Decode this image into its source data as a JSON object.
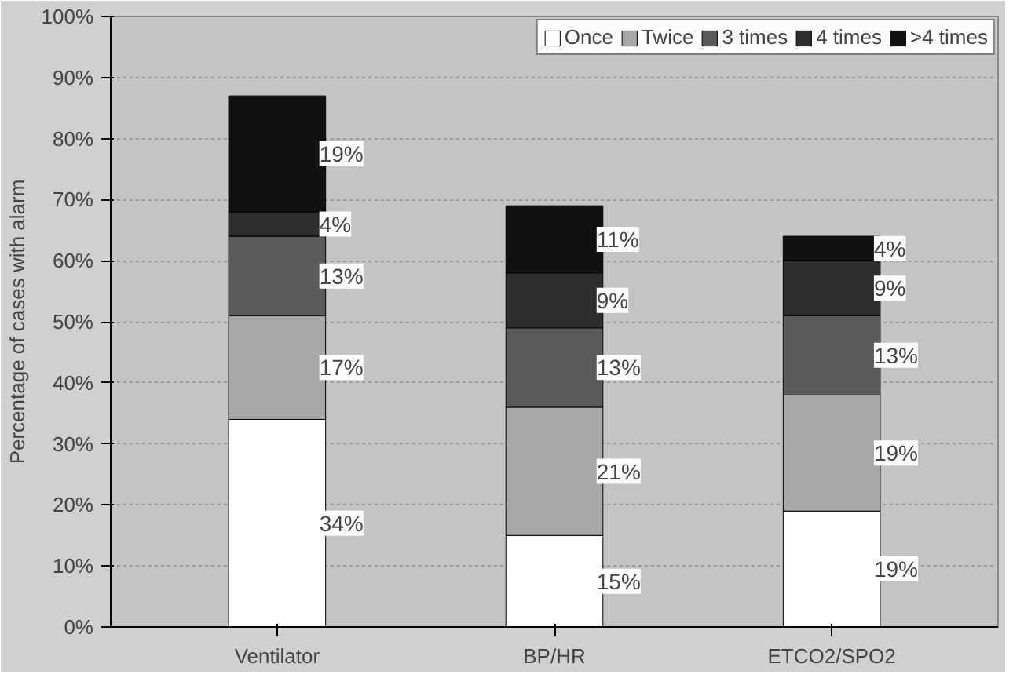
{
  "chart_data": {
    "type": "bar",
    "stacked": true,
    "ylabel": "Percentage of cases with alarm",
    "categories": [
      "Ventilator",
      "BP/HR",
      "ETCO2/SPO2"
    ],
    "series": [
      {
        "name": "Once",
        "color": "#ffffff",
        "values": [
          34,
          15,
          19
        ],
        "value_labels": [
          "34%",
          "15%",
          "19%"
        ]
      },
      {
        "name": "Twice",
        "color": "#a8a8a8",
        "values": [
          17,
          21,
          19
        ],
        "value_labels": [
          "17%",
          "21%",
          "19%"
        ]
      },
      {
        "name": "3 times",
        "color": "#5a5a5a",
        "values": [
          13,
          13,
          13
        ],
        "value_labels": [
          "13%",
          "13%",
          "13%"
        ]
      },
      {
        "name": "4 times",
        "color": "#2e2e2e",
        "values": [
          4,
          9,
          9
        ],
        "value_labels": [
          "4%",
          "9%",
          "9%"
        ]
      },
      {
        "name": ">4 times",
        "color": "#111111",
        "values": [
          19,
          11,
          4
        ],
        "value_labels": [
          "19%",
          "11%",
          "4%"
        ]
      }
    ],
    "ylim": [
      0,
      100
    ],
    "yticks": [
      {
        "value": 0,
        "label": "0%"
      },
      {
        "value": 10,
        "label": "10%"
      },
      {
        "value": 20,
        "label": "20%"
      },
      {
        "value": 30,
        "label": "30%"
      },
      {
        "value": 40,
        "label": "40%"
      },
      {
        "value": 50,
        "label": "50%"
      },
      {
        "value": 60,
        "label": "60%"
      },
      {
        "value": 70,
        "label": "70%"
      },
      {
        "value": 80,
        "label": "80%"
      },
      {
        "value": 90,
        "label": "90%"
      },
      {
        "value": 100,
        "label": "100%"
      }
    ],
    "grid": "y",
    "legend": "top right"
  }
}
